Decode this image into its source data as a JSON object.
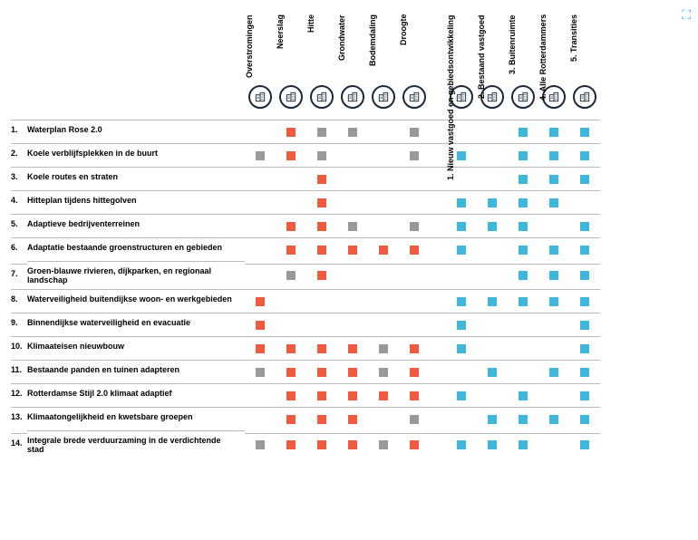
{
  "colors": {
    "orange": "#ef5b3e",
    "grey": "#999999",
    "blue": "#3fb7db",
    "ring": "#1a2a3a"
  },
  "left_headers": [
    "Overstromingen",
    "Neerslag",
    "Hitte",
    "Grondwater",
    "Bodemdaling",
    "Droogte"
  ],
  "right_headers": [
    "1. Nieuw vastgoed en gebiedsontwikkeling",
    "2. Bestaand vastgoed",
    "3. Buitenruimte",
    "4. Alle Rotterdammers",
    "5. Transities"
  ],
  "rows": [
    {
      "n": "1.",
      "label": "Waterplan Rose 2.0",
      "l": [
        "",
        "",
        "o",
        "g",
        "g",
        "",
        "g"
      ],
      "r": [
        "",
        "",
        "b",
        "b",
        "b"
      ]
    },
    {
      "n": "2.",
      "label": "Koele verblijfsplekken in de buurt",
      "l": [
        "",
        "g",
        "o",
        "g",
        "",
        "",
        "g"
      ],
      "r": [
        "b",
        "",
        "b",
        "b",
        "b"
      ]
    },
    {
      "n": "3.",
      "label": "Koele routes en straten",
      "l": [
        "",
        "",
        "",
        "o",
        "",
        "",
        ""
      ],
      "r": [
        "",
        "",
        "b",
        "b",
        "b"
      ]
    },
    {
      "n": "4.",
      "label": "Hitteplan tijdens hittegolven",
      "l": [
        "",
        "",
        "",
        "o",
        "",
        "",
        ""
      ],
      "r": [
        "b",
        "b",
        "b",
        "b",
        ""
      ]
    },
    {
      "n": "5.",
      "label": "Adaptieve bedrijventerreinen",
      "l": [
        "",
        "",
        "o",
        "o",
        "g",
        "",
        "g"
      ],
      "r": [
        "b",
        "b",
        "b",
        "",
        "b"
      ]
    },
    {
      "n": "6.",
      "label": "Adaptatie bestaande groenstructuren en gebieden",
      "l": [
        "",
        "",
        "o",
        "o",
        "o",
        "o",
        "o"
      ],
      "r": [
        "b",
        "",
        "b",
        "b",
        "b"
      ]
    },
    {
      "n": "7.",
      "label": "Groen-blauwe rivieren, dijkparken, en regionaal landschap",
      "l": [
        "",
        "",
        "g",
        "o",
        "",
        "",
        ""
      ],
      "r": [
        "",
        "",
        "b",
        "b",
        "b"
      ]
    },
    {
      "n": "8.",
      "label": "Waterveiligheid buitendijkse woon- en werkgebieden",
      "l": [
        "",
        "o",
        "",
        "",
        "",
        "",
        ""
      ],
      "r": [
        "b",
        "b",
        "b",
        "b",
        "b"
      ]
    },
    {
      "n": "9.",
      "label": "Binnendijkse waterveiligheid en evacuatie",
      "l": [
        "",
        "o",
        "",
        "",
        "",
        "",
        ""
      ],
      "r": [
        "b",
        "",
        "",
        "",
        "b"
      ]
    },
    {
      "n": "10.",
      "label": "Klimaateisen nieuwbouw",
      "l": [
        "",
        "o",
        "o",
        "o",
        "o",
        "g",
        "o"
      ],
      "r": [
        "b",
        "",
        "",
        "",
        "b"
      ]
    },
    {
      "n": "11.",
      "label": "Bestaande panden en tuinen adapteren",
      "l": [
        "",
        "g",
        "o",
        "o",
        "o",
        "g",
        "o"
      ],
      "r": [
        "",
        "b",
        "",
        "b",
        "b"
      ]
    },
    {
      "n": "12.",
      "label": "Rotterdamse Stijl 2.0 klimaat adaptief",
      "l": [
        "",
        "",
        "o",
        "o",
        "o",
        "o",
        "o"
      ],
      "r": [
        "b",
        "",
        "b",
        "",
        "b"
      ]
    },
    {
      "n": "13.",
      "label": "Klimaatongelijkheid en kwetsbare groepen",
      "l": [
        "",
        "",
        "o",
        "o",
        "o",
        "",
        "g"
      ],
      "r": [
        "",
        "b",
        "b",
        "b",
        "b"
      ]
    },
    {
      "n": "14.",
      "label": "Integrale brede verduurzaming in de verdichtende stad",
      "l": [
        "",
        "g",
        "o",
        "o",
        "o",
        "g",
        "o"
      ],
      "r": [
        "b",
        "b",
        "b",
        "",
        "b"
      ]
    }
  ]
}
